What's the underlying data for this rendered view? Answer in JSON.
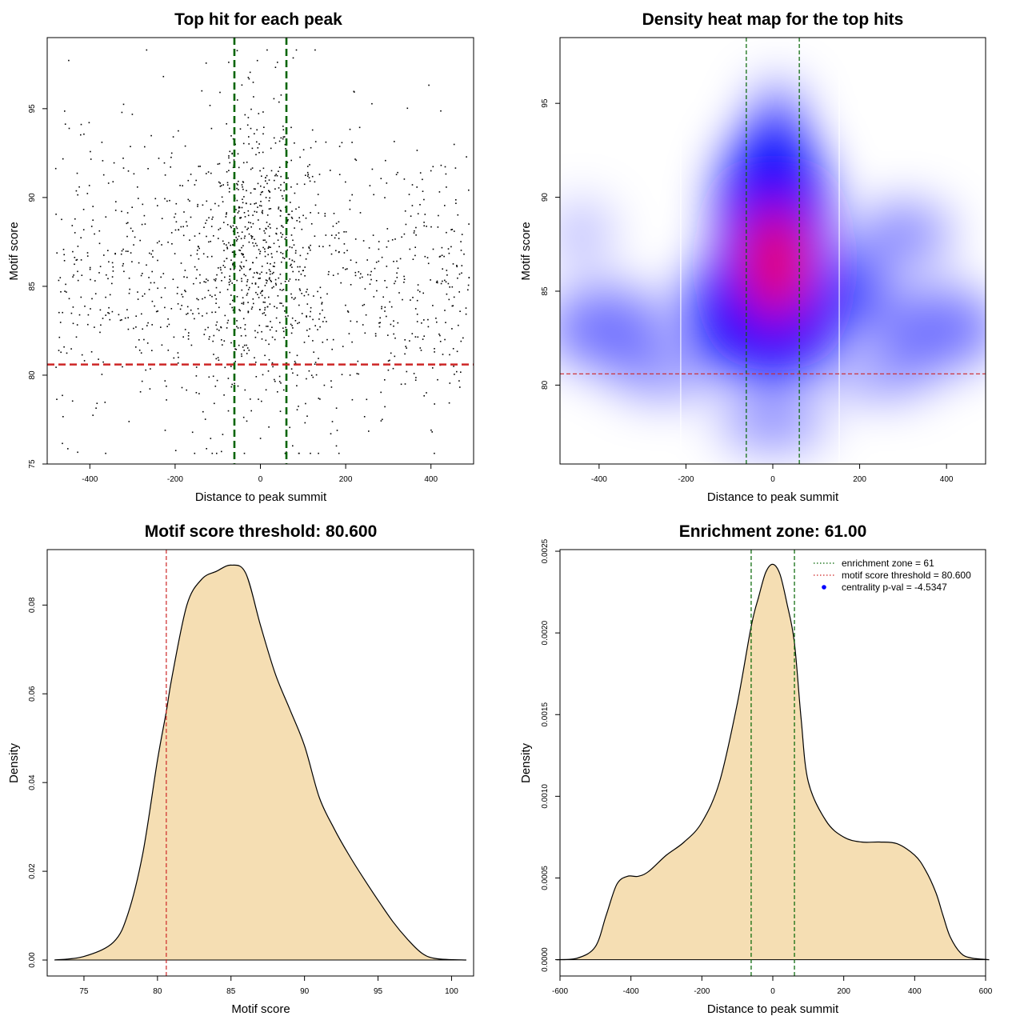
{
  "chart_data": [
    {
      "id": "scatter",
      "type": "scatter",
      "title": "Top hit for each peak",
      "xlabel": "Distance to peak summit",
      "ylabel": "Motif score",
      "xlim": [
        -500,
        500
      ],
      "ylim": [
        75,
        99
      ],
      "xticks": [
        -400,
        -200,
        0,
        200,
        400
      ],
      "yticks": [
        75,
        80,
        85,
        90,
        95
      ],
      "vlines": [
        -61,
        61
      ],
      "hline": 80.6,
      "point_count": 1500,
      "colors": {
        "points": "#000000",
        "vlines": "#006400",
        "hline": "#cd2626"
      }
    },
    {
      "id": "heatmap",
      "type": "heatmap",
      "title": "Density heat map for the top hits",
      "xlabel": "Distance to peak summit",
      "ylabel": "Motif score",
      "xlim": [
        -490,
        490
      ],
      "ylim": [
        75.8,
        98.5
      ],
      "xticks": [
        -400,
        -200,
        0,
        200,
        400
      ],
      "yticks": [
        80,
        85,
        90,
        95
      ],
      "vlines": [
        -61,
        61
      ],
      "white_vlines": [
        -212,
        153
      ],
      "hline": 80.6,
      "peak": {
        "x": 5,
        "y": 86.5
      },
      "colors": {
        "low": "#ffffff",
        "mid": "#0000ff",
        "high": "#ff0000",
        "vlines": "#006400",
        "hline": "#cd2626"
      }
    },
    {
      "id": "score_density",
      "type": "area",
      "title": "Motif score threshold: 80.600",
      "xlabel": "Motif score",
      "ylabel": "Density",
      "xlim": [
        72.5,
        101.5
      ],
      "ylim": [
        -0.0036,
        0.0925
      ],
      "xticks": [
        75,
        80,
        85,
        90,
        95,
        100
      ],
      "yticks": [
        0.0,
        0.02,
        0.04,
        0.06,
        0.08
      ],
      "ytick_labels": [
        "0.00",
        "0.02",
        "0.04",
        "0.06",
        "0.08"
      ],
      "x": [
        73,
        75,
        77,
        78,
        79,
        80,
        80.6,
        81,
        82,
        83,
        84,
        85,
        86,
        87,
        88,
        89,
        90,
        91,
        92,
        93,
        94,
        95,
        96,
        97,
        98,
        99,
        101
      ],
      "y": [
        0,
        0.0008,
        0.004,
        0.0105,
        0.024,
        0.045,
        0.056,
        0.064,
        0.08,
        0.0858,
        0.0876,
        0.089,
        0.0872,
        0.0755,
        0.0646,
        0.0565,
        0.0483,
        0.0367,
        0.0297,
        0.0238,
        0.0185,
        0.0135,
        0.0087,
        0.0047,
        0.0015,
        0.0003,
        0
      ],
      "vline": 80.6,
      "colors": {
        "fill": "#f5deb3",
        "line": "#000000",
        "vline": "#cd2626"
      }
    },
    {
      "id": "distance_density",
      "type": "area",
      "title": "Enrichment zone: 61.00",
      "xlabel": "Distance to peak summit",
      "ylabel": "Density",
      "xlim": [
        -600,
        600
      ],
      "ylim": [
        -0.0001,
        0.00251
      ],
      "xticks": [
        -600,
        -400,
        -200,
        0,
        200,
        400,
        600
      ],
      "yticks": [
        0.0,
        0.0005,
        0.001,
        0.0015,
        0.002,
        0.0025
      ],
      "ytick_labels": [
        "0.0000",
        "0.0005",
        "0.0010",
        "0.0015",
        "0.0020",
        "0.0025"
      ],
      "x": [
        -610,
        -550,
        -500,
        -470,
        -440,
        -410,
        -380,
        -350,
        -300,
        -250,
        -200,
        -150,
        -100,
        -61,
        -40,
        -20,
        0,
        20,
        40,
        61,
        80,
        100,
        150,
        200,
        250,
        300,
        350,
        400,
        430,
        460,
        480,
        500,
        530,
        560,
        610
      ],
      "y": [
        0,
        1e-05,
        8e-05,
        0.00027,
        0.00046,
        0.00051,
        0.00051,
        0.00054,
        0.00064,
        0.00072,
        0.00084,
        0.00109,
        0.00157,
        0.00204,
        0.00222,
        0.00237,
        0.00242,
        0.00236,
        0.00218,
        0.00194,
        0.00147,
        0.00109,
        0.00085,
        0.00075,
        0.00072,
        0.00072,
        0.00071,
        0.00064,
        0.00055,
        0.00041,
        0.00027,
        0.00014,
        4e-05,
        1e-05,
        0
      ],
      "vlines": [
        -61,
        61
      ],
      "colors": {
        "fill": "#f5deb3",
        "line": "#000000",
        "vlines": "#006400",
        "legend_point": "#0000ff",
        "legend_threshold": "#cd2626"
      },
      "legend": [
        {
          "label": "enrichment zone = 61",
          "style": "dotted-green"
        },
        {
          "label": "motif score threshold = 80.600",
          "style": "dotted-red"
        },
        {
          "label": "centrality p-val = -4.5347",
          "style": "blue-point"
        }
      ]
    }
  ]
}
